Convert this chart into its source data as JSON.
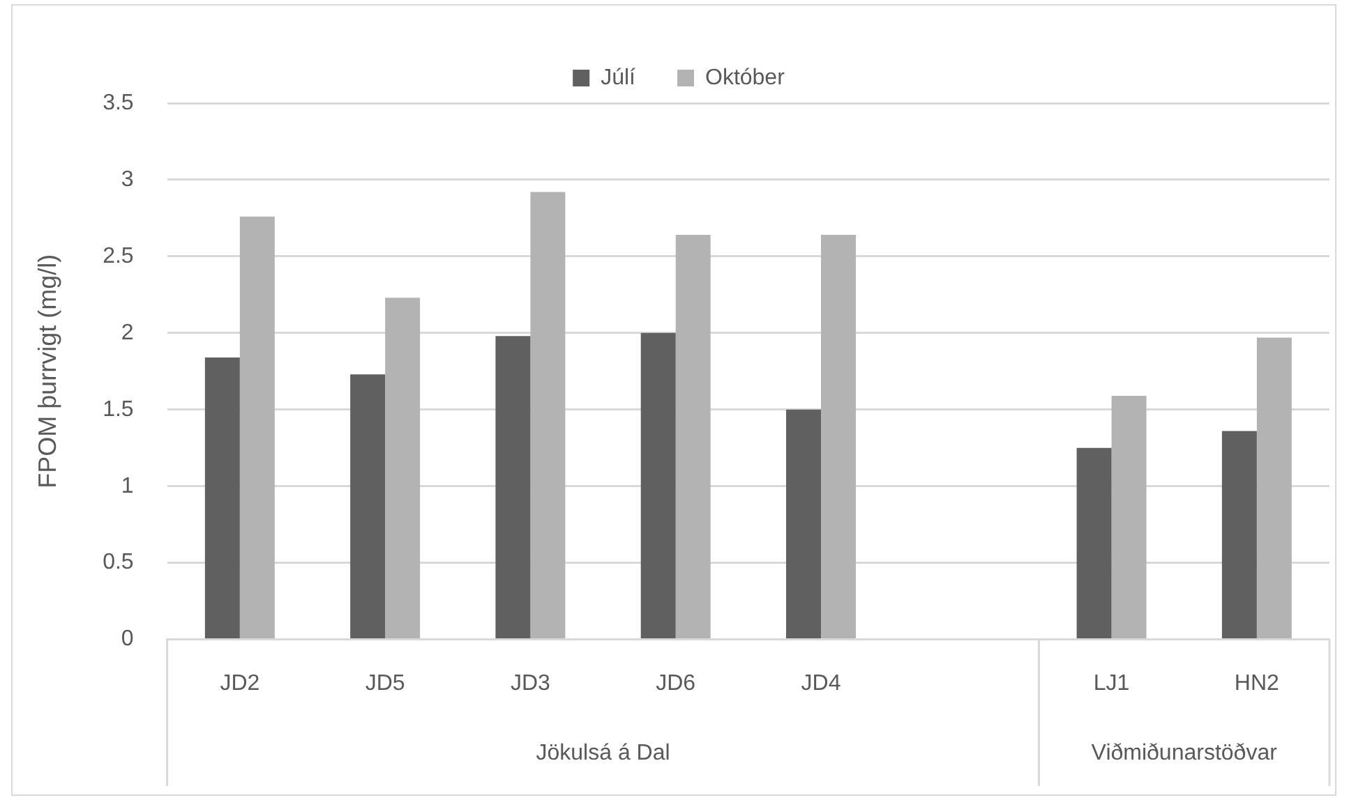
{
  "chart_data": {
    "type": "bar",
    "categories": [
      "JD2",
      "JD5",
      "JD3",
      "JD6",
      "JD4",
      null,
      "LJ1",
      "HN2"
    ],
    "series": [
      {
        "name": "Júlí",
        "color": "#606060",
        "values": [
          1.84,
          1.73,
          1.98,
          2.0,
          1.5,
          null,
          1.25,
          1.36
        ]
      },
      {
        "name": "Október",
        "color": "#b3b3b3",
        "values": [
          2.76,
          2.23,
          2.92,
          2.64,
          2.64,
          null,
          1.59,
          1.97
        ]
      }
    ],
    "ylabel": "FPOM þurrvigt (mg/l)",
    "ylim": [
      0,
      3.5
    ],
    "yticks": [
      0,
      0.5,
      1,
      1.5,
      2,
      2.5,
      3,
      3.5
    ],
    "annotations": [
      "Jökulsá á Dal",
      "Viðmiðunarstöðvar"
    ],
    "grid": "y",
    "legend": "top"
  }
}
